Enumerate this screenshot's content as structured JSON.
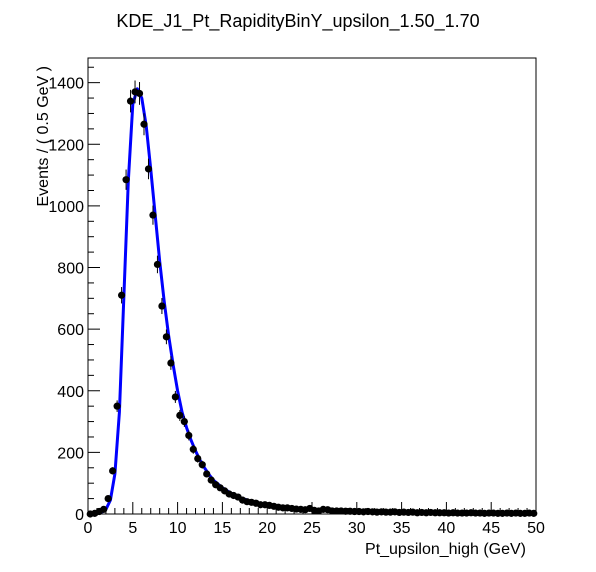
{
  "chart_data": {
    "type": "scatter",
    "title": "KDE_J1_Pt_RapidityBinY_upsilon_1.50_1.70",
    "xlabel": "Pt_upsilon_high (GeV)",
    "ylabel": "Events / ( 0.5 GeV )",
    "xlim": [
      0,
      50
    ],
    "ylim": [
      0,
      1480
    ],
    "x_ticks": [
      0,
      5,
      10,
      15,
      20,
      25,
      30,
      35,
      40,
      45,
      50
    ],
    "y_ticks": [
      0,
      200,
      400,
      600,
      800,
      1000,
      1200,
      1400
    ],
    "grid": false,
    "colors": {
      "points": "#000000",
      "fit": "#0000ff"
    },
    "series": [
      {
        "kind": "points-with-errors",
        "x": [
          0.25,
          0.75,
          1.25,
          1.75,
          2.25,
          2.75,
          3.25,
          3.75,
          4.25,
          4.75,
          5.25,
          5.75,
          6.25,
          6.75,
          7.25,
          7.75,
          8.25,
          8.75,
          9.25,
          9.75,
          10.25,
          10.75,
          11.25,
          11.75,
          12.25,
          12.75,
          13.25,
          13.75,
          14.25,
          14.75,
          15.25,
          15.75,
          16.25,
          16.75,
          17.25,
          17.75,
          18.25,
          18.75,
          19.25,
          19.75,
          20.25,
          20.75,
          21.25,
          21.75,
          22.25,
          22.75,
          23.25,
          23.75,
          24.25,
          24.75,
          25.25,
          25.75,
          26.25,
          26.75,
          27.25,
          27.75,
          28.25,
          28.75,
          29.25,
          29.75,
          30.25,
          30.75,
          31.25,
          31.75,
          32.25,
          32.75,
          33.25,
          33.75,
          34.25,
          34.75,
          35.25,
          35.75,
          36.25,
          36.75,
          37.25,
          37.75,
          38.25,
          38.75,
          39.25,
          39.75,
          40.25,
          40.75,
          41.25,
          41.75,
          42.25,
          42.75,
          43.25,
          43.75,
          44.25,
          44.75,
          45.25,
          45.75,
          46.25,
          46.75,
          47.25,
          47.75,
          48.25,
          48.75,
          49.25,
          49.75
        ],
        "y": [
          0,
          2,
          8,
          15,
          50,
          140,
          350,
          710,
          1085,
          1340,
          1370,
          1365,
          1265,
          1120,
          970,
          810,
          675,
          575,
          490,
          380,
          320,
          300,
          255,
          210,
          180,
          160,
          130,
          110,
          95,
          85,
          75,
          65,
          60,
          55,
          45,
          40,
          38,
          35,
          30,
          30,
          28,
          25,
          22,
          20,
          20,
          18,
          16,
          15,
          14,
          18,
          12,
          10,
          15,
          14,
          10,
          10,
          10,
          9,
          9,
          8,
          8,
          7,
          8,
          7,
          6,
          7,
          6,
          6,
          7,
          5,
          6,
          5,
          6,
          4,
          5,
          4,
          5,
          4,
          4,
          4,
          3,
          4,
          3,
          3,
          3,
          4,
          3,
          3,
          2,
          3,
          3,
          2,
          2,
          3,
          2,
          3,
          2,
          2,
          3,
          2
        ]
      },
      {
        "kind": "fit-curve",
        "x": [
          0,
          1,
          1.5,
          2,
          2.5,
          3,
          3.5,
          4,
          4.5,
          5,
          5.5,
          6,
          6.5,
          7,
          7.5,
          8,
          8.5,
          9,
          9.5,
          10,
          10.5,
          11,
          11.5,
          12,
          12.5,
          13,
          13.5,
          14,
          15,
          16,
          17,
          18,
          19,
          20,
          22,
          24,
          26,
          28,
          30,
          33,
          36,
          40,
          44,
          48,
          50
        ],
        "y": [
          0,
          2,
          6,
          15,
          45,
          130,
          330,
          700,
          1080,
          1330,
          1380,
          1350,
          1260,
          1120,
          970,
          820,
          690,
          580,
          485,
          400,
          330,
          280,
          240,
          205,
          175,
          150,
          128,
          110,
          85,
          67,
          53,
          43,
          36,
          30,
          22,
          17,
          13,
          10,
          8,
          6,
          5,
          4,
          3,
          2.5,
          2
        ]
      }
    ]
  }
}
